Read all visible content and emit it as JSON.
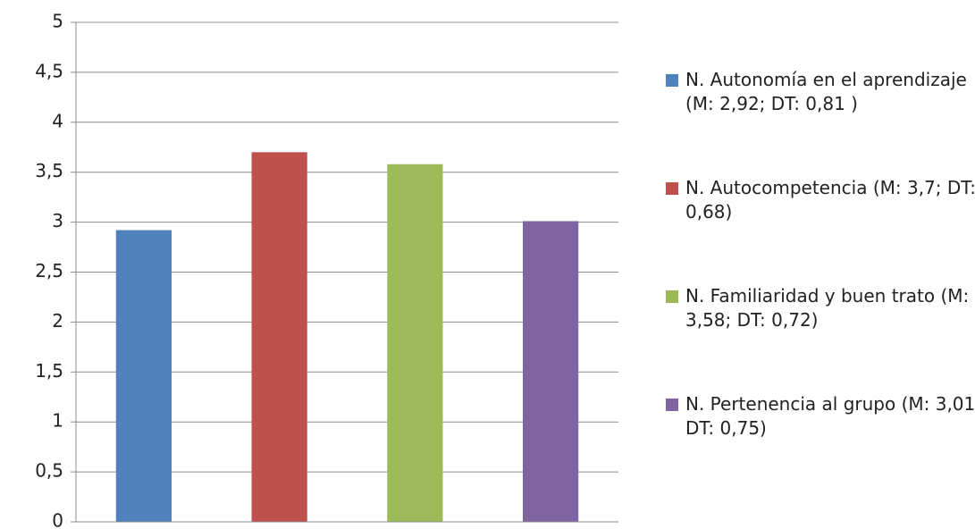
{
  "chart_data": {
    "type": "bar",
    "categories": [
      null
    ],
    "series": [
      {
        "name": "N. Autonomía en el aprendizaje (M: 2,92; DT: 0,81 )",
        "color": "#4f81bd",
        "values": [
          2.92
        ]
      },
      {
        "name": "N. Autocompetencia (M: 3,7; DT: 0,68)",
        "color": "#c0504d",
        "values": [
          3.7
        ]
      },
      {
        "name": "N. Familiaridad y buen trato (M: 3,58; DT: 0,72)",
        "color": "#9bbb59",
        "values": [
          3.58
        ]
      },
      {
        "name": "N. Pertenencia al grupo (M: 3,01; DT: 0,75)",
        "color": "#8064a2",
        "values": [
          3.01
        ]
      }
    ],
    "ylim": [
      0,
      5
    ],
    "yticks": [
      0,
      {
        "value": 0.5,
        "label": "0,5"
      },
      1,
      {
        "value": 1.5,
        "label": "1,5"
      },
      2,
      {
        "value": 2.5,
        "label": "2,5"
      },
      3,
      {
        "value": 3.5,
        "label": "3,5"
      },
      4,
      {
        "value": 4.5,
        "label": "4,5"
      },
      5
    ],
    "grid": true,
    "legend": "right"
  }
}
